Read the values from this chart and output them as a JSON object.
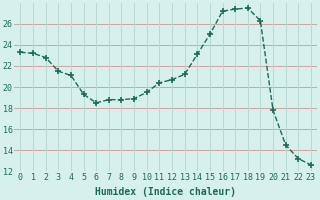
{
  "x": [
    0,
    1,
    2,
    3,
    4,
    5,
    6,
    7,
    8,
    9,
    10,
    11,
    12,
    13,
    14,
    15,
    16,
    17,
    18,
    19,
    20,
    21,
    22,
    23
  ],
  "y": [
    23.3,
    23.2,
    22.8,
    21.5,
    21.1,
    19.3,
    18.5,
    18.8,
    18.8,
    18.9,
    19.5,
    20.4,
    20.7,
    21.2,
    23.1,
    25.0,
    27.2,
    27.4,
    27.5,
    26.3,
    17.8,
    14.5,
    13.2,
    12.6
  ],
  "line_color": "#1a6b5a",
  "marker": "+",
  "marker_size": 4,
  "bg_color": "#d6f0ec",
  "grid_color_h": "#d4a0a0",
  "grid_color_v": "#b8d8d4",
  "xlabel": "Humidex (Indice chaleur)",
  "ylim": [
    12,
    28
  ],
  "xlim": [
    -0.5,
    23.5
  ],
  "yticks": [
    12,
    14,
    16,
    18,
    20,
    22,
    24,
    26
  ],
  "xtick_labels": [
    "0",
    "1",
    "2",
    "3",
    "4",
    "5",
    "6",
    "7",
    "8",
    "9",
    "10",
    "11",
    "12",
    "13",
    "14",
    "15",
    "16",
    "17",
    "18",
    "19",
    "20",
    "21",
    "22",
    "23"
  ],
  "label_color": "#1a6b5a",
  "tick_color": "#1a6b5a",
  "xlabel_fontsize": 7,
  "tick_fontsize": 6
}
